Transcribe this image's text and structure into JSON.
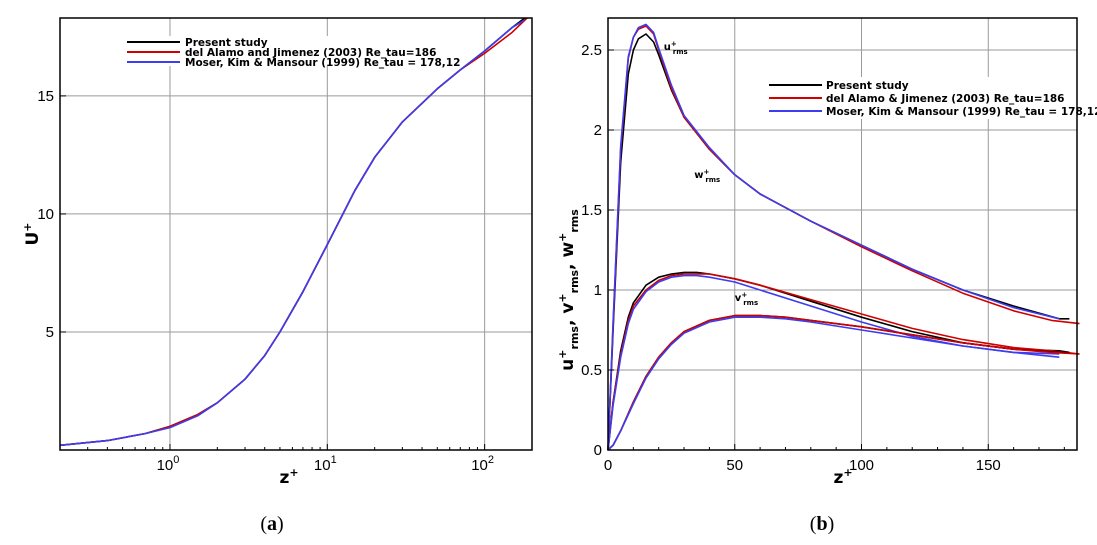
{
  "captions": {
    "a": "a",
    "b": "b"
  },
  "colors": {
    "present": "#000000",
    "del_alamo": "#d00000",
    "moser": "#3c3cf0",
    "grid": "#9a9a9a"
  },
  "chart_data": [
    {
      "id": "a",
      "type": "line",
      "xscale": "log",
      "xlim": [
        0.2,
        200
      ],
      "ylim": [
        0,
        18.3
      ],
      "xlabel": "z+",
      "ylabel": "U+",
      "xticks": [
        {
          "value": 1,
          "base": "10",
          "exp": "0"
        },
        {
          "value": 10,
          "base": "10",
          "exp": "1"
        },
        {
          "value": 100,
          "base": "10",
          "exp": "2"
        }
      ],
      "yticks": [
        5,
        10,
        15
      ],
      "legend": [
        "Present study",
        "del Alamo and Jimenez (2003) Re_tau=186",
        "Moser, Kim & Mansour (1999) Re_tau = 178,12"
      ],
      "legend_position": "top-center",
      "series": [
        {
          "name": "Present study",
          "color_key": "present",
          "x": [
            0.2,
            0.4,
            0.7,
            1.0,
            1.5,
            2,
            3,
            4,
            5,
            7,
            10,
            15,
            20,
            30,
            50,
            70,
            100,
            150,
            180
          ],
          "y": [
            0.2,
            0.4,
            0.7,
            1.0,
            1.5,
            2.0,
            3.0,
            4.0,
            5.0,
            6.7,
            8.7,
            11.0,
            12.4,
            13.9,
            15.3,
            16.1,
            16.9,
            17.9,
            18.3
          ]
        },
        {
          "name": "del Alamo and Jimenez (2003) Re_tau=186",
          "color_key": "del_alamo",
          "x": [
            0.2,
            0.4,
            0.7,
            1.0,
            1.5,
            2,
            3,
            4,
            5,
            7,
            10,
            15,
            20,
            30,
            50,
            70,
            100,
            150,
            186
          ],
          "y": [
            0.2,
            0.4,
            0.7,
            1.0,
            1.5,
            2.0,
            3.0,
            4.0,
            5.0,
            6.7,
            8.7,
            11.0,
            12.4,
            13.9,
            15.3,
            16.1,
            16.8,
            17.7,
            18.3
          ]
        },
        {
          "name": "Moser, Kim & Mansour (1999) Re_tau = 178,12",
          "color_key": "moser",
          "x": [
            0.2,
            0.4,
            0.7,
            1.0,
            1.5,
            2,
            3,
            4,
            5,
            7,
            10,
            15,
            20,
            30,
            50,
            70,
            100,
            150,
            178
          ],
          "y": [
            0.2,
            0.4,
            0.7,
            0.95,
            1.45,
            2.0,
            3.0,
            4.0,
            5.0,
            6.7,
            8.7,
            11.0,
            12.4,
            13.9,
            15.3,
            16.1,
            16.9,
            17.9,
            18.2
          ]
        }
      ]
    },
    {
      "id": "b",
      "type": "line",
      "xlim": [
        0,
        185
      ],
      "ylim": [
        0,
        2.7
      ],
      "xlabel": "z+",
      "ylabel": "u+rms, v+rms, w+rms",
      "xticks": [
        0,
        50,
        100,
        150
      ],
      "yticks": [
        0,
        0.5,
        1,
        1.5,
        2,
        2.5
      ],
      "legend": [
        "Present study",
        "del Alamo & Jimenez (2003) Re_tau=186",
        "Moser, Kim & Mansour (1999) Re_tau = 178,12"
      ],
      "legend_position": "top-right",
      "annotations": [
        {
          "base": "u",
          "sup": "+",
          "sub": "rms",
          "x": 22,
          "y": 2.5
        },
        {
          "base": "w",
          "sup": "+",
          "sub": "rms",
          "x": 34,
          "y": 1.7
        },
        {
          "base": "v",
          "sup": "+",
          "sub": "rms",
          "x": 50,
          "y": 0.93
        }
      ],
      "series": [
        {
          "name": "Present study",
          "component": "u",
          "color_key": "present",
          "x": [
            0,
            2,
            5,
            8,
            10,
            12,
            15,
            18,
            20,
            25,
            30,
            40,
            50,
            60,
            80,
            100,
            120,
            140,
            160,
            178,
            182
          ],
          "y": [
            0,
            0.75,
            1.8,
            2.35,
            2.5,
            2.57,
            2.6,
            2.55,
            2.47,
            2.25,
            2.08,
            1.88,
            1.72,
            1.6,
            1.43,
            1.28,
            1.13,
            1.0,
            0.9,
            0.82,
            0.82
          ]
        },
        {
          "name": "del Alamo & Jimenez (2003) Re_tau=186",
          "component": "u",
          "color_key": "del_alamo",
          "x": [
            0,
            2,
            5,
            8,
            10,
            12,
            15,
            18,
            20,
            25,
            30,
            40,
            50,
            60,
            80,
            100,
            120,
            140,
            160,
            175,
            186
          ],
          "y": [
            0,
            0.78,
            1.88,
            2.45,
            2.58,
            2.63,
            2.65,
            2.6,
            2.5,
            2.26,
            2.08,
            1.88,
            1.72,
            1.6,
            1.43,
            1.27,
            1.12,
            0.98,
            0.87,
            0.81,
            0.79
          ]
        },
        {
          "name": "Moser, Kim & Mansour (1999) Re_tau = 178,12",
          "component": "u",
          "color_key": "moser",
          "x": [
            0,
            2,
            5,
            8,
            10,
            12,
            15,
            18,
            20,
            25,
            30,
            40,
            50,
            60,
            80,
            100,
            120,
            140,
            160,
            178
          ],
          "y": [
            0,
            0.8,
            1.9,
            2.46,
            2.58,
            2.64,
            2.66,
            2.61,
            2.51,
            2.28,
            2.09,
            1.89,
            1.72,
            1.6,
            1.43,
            1.28,
            1.13,
            1.0,
            0.89,
            0.82
          ]
        },
        {
          "name": "Present study",
          "component": "w",
          "color_key": "present",
          "x": [
            0,
            2,
            5,
            8,
            10,
            15,
            20,
            25,
            30,
            35,
            40,
            50,
            60,
            80,
            100,
            120,
            140,
            160,
            178,
            182
          ],
          "y": [
            0,
            0.3,
            0.62,
            0.83,
            0.92,
            1.03,
            1.08,
            1.1,
            1.11,
            1.11,
            1.1,
            1.07,
            1.03,
            0.93,
            0.83,
            0.74,
            0.67,
            0.63,
            0.62,
            0.61
          ]
        },
        {
          "name": "del Alamo & Jimenez (2003) Re_tau=186",
          "component": "w",
          "color_key": "del_alamo",
          "x": [
            0,
            2,
            5,
            8,
            10,
            15,
            20,
            25,
            30,
            35,
            40,
            50,
            60,
            80,
            100,
            120,
            140,
            160,
            175,
            186
          ],
          "y": [
            0,
            0.3,
            0.6,
            0.81,
            0.9,
            1.0,
            1.06,
            1.09,
            1.1,
            1.1,
            1.1,
            1.07,
            1.03,
            0.94,
            0.85,
            0.76,
            0.69,
            0.64,
            0.62,
            0.6
          ]
        },
        {
          "name": "Moser, Kim & Mansour (1999) Re_tau = 178,12",
          "component": "w",
          "color_key": "moser",
          "x": [
            0,
            2,
            5,
            8,
            10,
            15,
            20,
            25,
            30,
            35,
            40,
            50,
            60,
            80,
            100,
            120,
            140,
            160,
            178
          ],
          "y": [
            0,
            0.28,
            0.58,
            0.79,
            0.88,
            0.99,
            1.05,
            1.08,
            1.09,
            1.09,
            1.08,
            1.05,
            1.0,
            0.9,
            0.8,
            0.71,
            0.65,
            0.61,
            0.6
          ]
        },
        {
          "name": "Present study",
          "component": "v",
          "color_key": "present",
          "x": [
            0,
            2,
            5,
            10,
            15,
            20,
            25,
            30,
            40,
            50,
            60,
            70,
            80,
            100,
            120,
            140,
            160,
            178,
            182
          ],
          "y": [
            0,
            0.03,
            0.12,
            0.3,
            0.46,
            0.58,
            0.67,
            0.74,
            0.81,
            0.84,
            0.84,
            0.83,
            0.81,
            0.77,
            0.72,
            0.67,
            0.63,
            0.61,
            0.61
          ]
        },
        {
          "name": "del Alamo & Jimenez (2003) Re_tau=186",
          "component": "v",
          "color_key": "del_alamo",
          "x": [
            0,
            2,
            5,
            10,
            15,
            20,
            25,
            30,
            40,
            50,
            60,
            70,
            80,
            100,
            120,
            140,
            160,
            175,
            186
          ],
          "y": [
            0,
            0.03,
            0.12,
            0.3,
            0.46,
            0.58,
            0.67,
            0.74,
            0.81,
            0.84,
            0.84,
            0.83,
            0.81,
            0.77,
            0.72,
            0.67,
            0.63,
            0.61,
            0.6
          ]
        },
        {
          "name": "Moser, Kim & Mansour (1999) Re_tau = 178,12",
          "component": "v",
          "color_key": "moser",
          "x": [
            0,
            2,
            5,
            10,
            15,
            20,
            25,
            30,
            40,
            50,
            60,
            70,
            80,
            100,
            120,
            140,
            160,
            178
          ],
          "y": [
            0,
            0.03,
            0.12,
            0.29,
            0.45,
            0.57,
            0.66,
            0.73,
            0.8,
            0.83,
            0.83,
            0.82,
            0.8,
            0.75,
            0.7,
            0.65,
            0.61,
            0.58
          ]
        }
      ]
    }
  ]
}
